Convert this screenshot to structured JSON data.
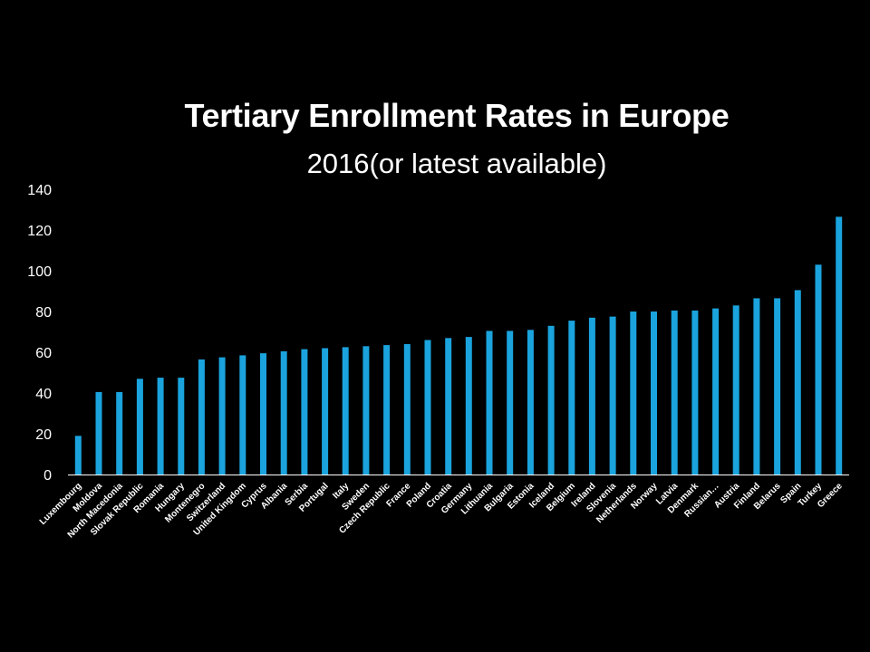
{
  "title": "Tertiary Enrollment Rates in Europe",
  "subtitle": "2016(or latest available)",
  "colors": {
    "background": "#000000",
    "bar": "#1aa3dd",
    "axis": "#ffffff",
    "text": "#ffffff"
  },
  "chart_data": {
    "type": "bar",
    "title": "Tertiary Enrollment Rates in Europe",
    "subtitle": "2016(or latest available)",
    "xlabel": "",
    "ylabel": "",
    "ylim": [
      0,
      140
    ],
    "yticks": [
      0,
      20,
      40,
      60,
      80,
      100,
      120,
      140
    ],
    "grid": false,
    "legend": "none",
    "categories": [
      "Luxembourg",
      "Moldova",
      "North Macedonia",
      "Slovak Republic",
      "Romania",
      "Hungary",
      "Montenegro",
      "Switzerland",
      "United Kingdom",
      "Cyprus",
      "Albania",
      "Serbia",
      "Portugal",
      "Italy",
      "Sweden",
      "Czech Republic",
      "France",
      "Poland",
      "Croatia",
      "Germany",
      "Lithuania",
      "Bulgaria",
      "Estonia",
      "Iceland",
      "Belgium",
      "Ireland",
      "Slovenia",
      "Netherlands",
      "Norway",
      "Latvia",
      "Denmark",
      "Russian…",
      "Austria",
      "Finland",
      "Belarus",
      "Spain",
      "Turkey",
      "Greece"
    ],
    "values": [
      19,
      40.5,
      40.5,
      47,
      47.5,
      47.5,
      56.5,
      57.5,
      58.5,
      59.5,
      60.5,
      61.5,
      62,
      62.5,
      63,
      63.5,
      64,
      66,
      67,
      67.5,
      70.5,
      70.5,
      71,
      73,
      75.5,
      77,
      77.5,
      80,
      80,
      80.5,
      80.5,
      81.5,
      83,
      86.5,
      86.5,
      90.5,
      103,
      126.5
    ]
  }
}
